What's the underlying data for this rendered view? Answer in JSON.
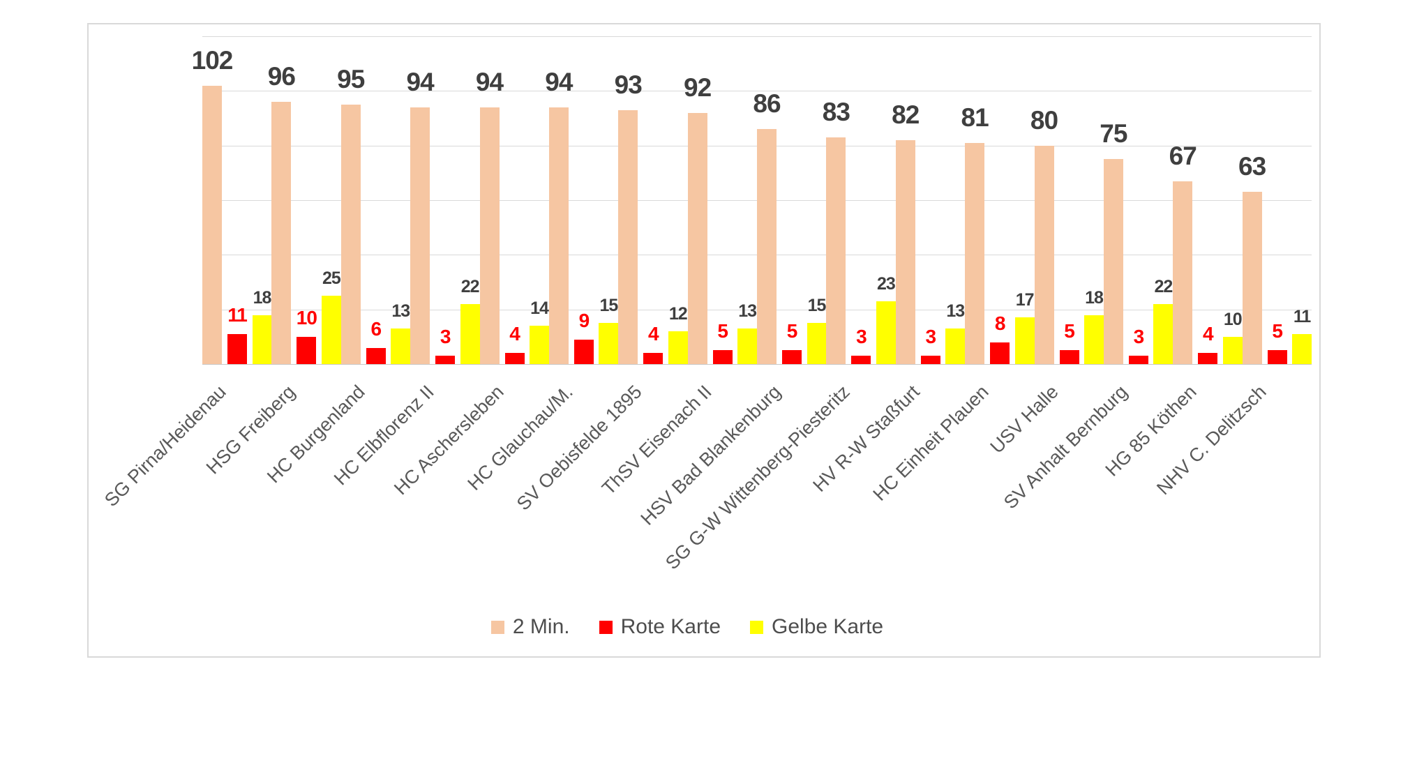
{
  "chart_data": {
    "type": "bar",
    "title": "",
    "xlabel": "",
    "ylabel": "",
    "ylim": [
      0,
      120
    ],
    "gridline_step": 20,
    "grid": true,
    "legend_position": "bottom",
    "value_labels": true,
    "categories": [
      "SG Pirna/Heidenau",
      "HSG Freiberg",
      "HC Burgenland",
      "HC Elbflorenz II",
      "HC Aschersleben",
      "HC Glauchau/M.",
      "SV Oebisfelde 1895",
      "ThSV Eisenach II",
      "HSV Bad Blankenburg",
      "SG G-W Wittenberg-Piesteritz",
      "HV R-W Staßfurt",
      "HC Einheit Plauen",
      "USV Halle",
      "SV Anhalt Bernburg",
      "HG 85 Köthen",
      "NHV C. Delitzsch"
    ],
    "series": [
      {
        "name": "2 Min.",
        "color": "#f6c6a2",
        "label_color": "#3f3f3f",
        "values": [
          102,
          96,
          95,
          94,
          94,
          94,
          93,
          92,
          86,
          83,
          82,
          81,
          80,
          75,
          67,
          63
        ]
      },
      {
        "name": "Rote Karte",
        "color": "#ff0000",
        "label_color": "#ff0000",
        "values": [
          11,
          10,
          6,
          3,
          4,
          9,
          4,
          5,
          5,
          3,
          3,
          8,
          5,
          3,
          4,
          5
        ]
      },
      {
        "name": "Gelbe Karte",
        "color": "#ffff00",
        "label_color": "#3f3f3f",
        "values": [
          18,
          25,
          13,
          22,
          14,
          15,
          12,
          13,
          15,
          23,
          13,
          17,
          18,
          22,
          10,
          11
        ]
      }
    ]
  },
  "style_colors": {
    "gridline": "#d9d9d9",
    "axis_line": "#c9c9c9",
    "frame_border": "#d9d9d9",
    "axis_label": "#595959",
    "legend_text": "#4d4d4d"
  }
}
